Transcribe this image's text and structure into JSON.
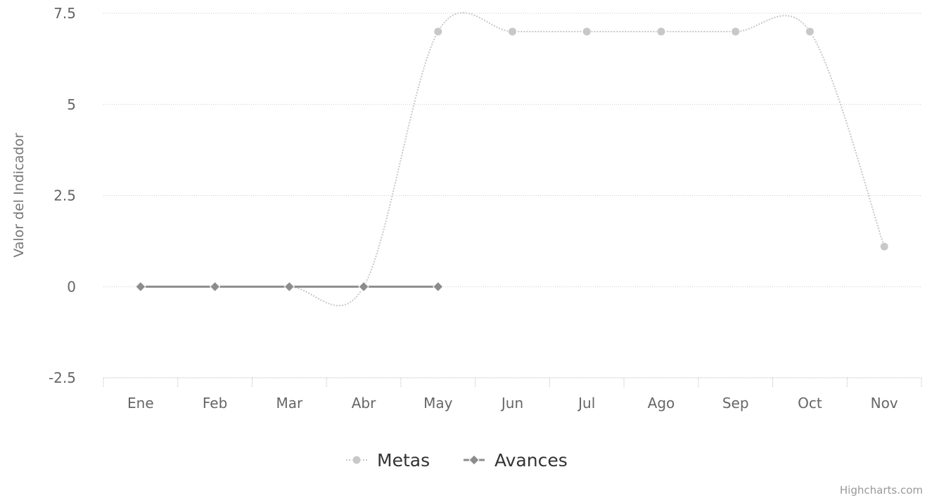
{
  "chart_data": {
    "type": "line",
    "title": "",
    "xlabel": "",
    "ylabel": "Valor del Indicador",
    "categories": [
      "Ene",
      "Feb",
      "Mar",
      "Abr",
      "May",
      "Jun",
      "Jul",
      "Ago",
      "Sep",
      "Oct",
      "Nov"
    ],
    "ylim": [
      -2.5,
      7.5
    ],
    "yticks": [
      "-2.5",
      "0",
      "2.5",
      "5",
      "7.5"
    ],
    "grid": true,
    "legend_position": "bottom-center",
    "series": [
      {
        "name": "Metas",
        "color": "#c8c8c8",
        "marker": "circle",
        "values": [
          0,
          0,
          0,
          0,
          7,
          7,
          7,
          7,
          7,
          7,
          1.1
        ]
      },
      {
        "name": "Avances",
        "color": "#8c8c8c",
        "marker": "diamond",
        "values": [
          0,
          0,
          0,
          0,
          0,
          null,
          null,
          null,
          null,
          null,
          null
        ]
      }
    ]
  },
  "credits": "Highcharts.com"
}
